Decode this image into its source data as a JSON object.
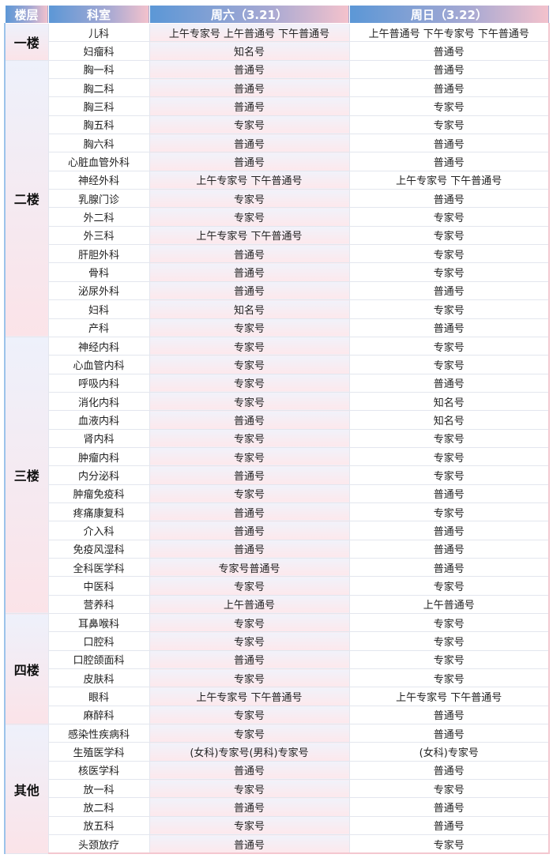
{
  "header": {
    "floor": "楼层",
    "dept": "科室",
    "sat": "周六（3.21）",
    "sun": "周日（3.22）"
  },
  "floors": [
    {
      "name": "一楼",
      "rows": [
        [
          "儿科",
          "上午专家号 上午普通号 下午普通号",
          "上午普通号 下午专家号 下午普通号"
        ],
        [
          "妇瘤科",
          "知名号",
          "普通号"
        ]
      ]
    },
    {
      "name": "二楼",
      "rows": [
        [
          "胸一科",
          "普通号",
          "普通号"
        ],
        [
          "胸二科",
          "普通号",
          "普通号"
        ],
        [
          "胸三科",
          "普通号",
          "专家号"
        ],
        [
          "胸五科",
          "专家号",
          "专家号"
        ],
        [
          "胸六科",
          "普通号",
          "普通号"
        ],
        [
          "心脏血管外科",
          "普通号",
          "普通号"
        ],
        [
          "神经外科",
          "上午专家号 下午普通号",
          "上午专家号 下午普通号"
        ],
        [
          "乳腺门诊",
          "专家号",
          "普通号"
        ],
        [
          "外二科",
          "专家号",
          "专家号"
        ],
        [
          "外三科",
          "上午专家号 下午普通号",
          "专家号"
        ],
        [
          "肝胆外科",
          "普通号",
          "专家号"
        ],
        [
          "骨科",
          "普通号",
          "专家号"
        ],
        [
          "泌尿外科",
          "普通号",
          "普通号"
        ],
        [
          "妇科",
          "知名号",
          "专家号"
        ],
        [
          "产科",
          "专家号",
          "普通号"
        ]
      ]
    },
    {
      "name": "三楼",
      "rows": [
        [
          "神经内科",
          "专家号",
          "专家号"
        ],
        [
          "心血管内科",
          "专家号",
          "专家号"
        ],
        [
          "呼吸内科",
          "专家号",
          "普通号"
        ],
        [
          "消化内科",
          "专家号",
          "知名号"
        ],
        [
          "血液内科",
          "普通号",
          "知名号"
        ],
        [
          "肾内科",
          "专家号",
          "专家号"
        ],
        [
          "肿瘤内科",
          "专家号",
          "专家号"
        ],
        [
          "内分泌科",
          "普通号",
          "专家号"
        ],
        [
          "肿瘤免疫科",
          "专家号",
          "普通号"
        ],
        [
          "疼痛康复科",
          "普通号",
          "专家号"
        ],
        [
          "介入科",
          "普通号",
          "普通号"
        ],
        [
          "免疫风湿科",
          "普通号",
          "普通号"
        ],
        [
          "全科医学科",
          "专家号普通号",
          "普通号"
        ],
        [
          "中医科",
          "专家号",
          "专家号"
        ],
        [
          "营养科",
          "上午普通号",
          "上午普通号"
        ]
      ]
    },
    {
      "name": "四楼",
      "rows": [
        [
          "耳鼻喉科",
          "专家号",
          "专家号"
        ],
        [
          "口腔科",
          "专家号",
          "专家号"
        ],
        [
          "口腔颌面科",
          "普通号",
          "专家号"
        ],
        [
          "皮肤科",
          "专家号",
          "专家号"
        ],
        [
          "眼科",
          "上午专家号 下午普通号",
          "上午专家号 下午普通号"
        ],
        [
          "麻醉科",
          "专家号",
          "普通号"
        ]
      ]
    },
    {
      "name": "其他",
      "rows": [
        [
          "感染性疾病科",
          "专家号",
          "普通号"
        ],
        [
          "生殖医学科",
          "(女科)专家号(男科)专家号",
          "(女科)专家号"
        ],
        [
          "核医学科",
          "普通号",
          "普通号"
        ],
        [
          "放一科",
          "专家号",
          "专家号"
        ],
        [
          "放二科",
          "普通号",
          "普通号"
        ],
        [
          "放五科",
          "专家号",
          "普通号"
        ],
        [
          "头颈放疗",
          "普通号",
          "专家号"
        ]
      ]
    }
  ]
}
